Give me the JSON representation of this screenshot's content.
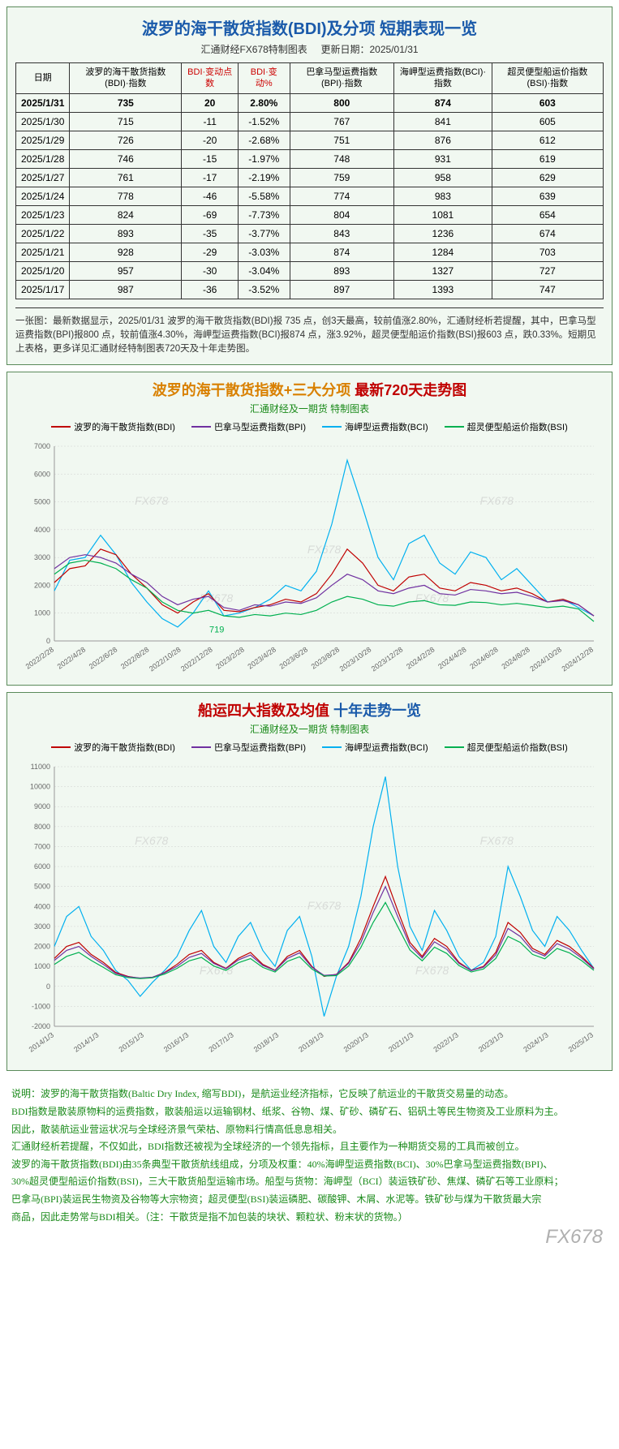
{
  "page": {
    "background_color": "#ffffff",
    "section_bg": "#f1f8f1",
    "border_color": "#5a8a5a"
  },
  "table": {
    "title": "波罗的海干散货指数(BDI)及分项 短期表现一览",
    "subtitle_left": "汇通财经FX678特制图表",
    "subtitle_right": "更新日期：2025/01/31",
    "headers": [
      {
        "text": "日期",
        "red": false
      },
      {
        "text": "波罗的海干散货指数(BDI)·指数",
        "red": false
      },
      {
        "text": "BDI·变动点数",
        "red": true
      },
      {
        "text": "BDI·变动%",
        "red": true
      },
      {
        "text": "巴拿马型运费指数(BPI)·指数",
        "red": false
      },
      {
        "text": "海岬型运费指数(BCI)·指数",
        "red": false
      },
      {
        "text": "超灵便型船运价指数(BSI)·指数",
        "red": false
      }
    ],
    "rows": [
      {
        "date": "2025/1/31",
        "bdi": "735",
        "chg": "20",
        "pct": "2.80%",
        "bpi": "800",
        "bci": "874",
        "bsi": "603",
        "bold": true
      },
      {
        "date": "2025/1/30",
        "bdi": "715",
        "chg": "-11",
        "pct": "-1.52%",
        "bpi": "767",
        "bci": "841",
        "bsi": "605",
        "bold": false
      },
      {
        "date": "2025/1/29",
        "bdi": "726",
        "chg": "-20",
        "pct": "-2.68%",
        "bpi": "751",
        "bci": "876",
        "bsi": "612",
        "bold": false
      },
      {
        "date": "2025/1/28",
        "bdi": "746",
        "chg": "-15",
        "pct": "-1.97%",
        "bpi": "748",
        "bci": "931",
        "bsi": "619",
        "bold": false
      },
      {
        "date": "2025/1/27",
        "bdi": "761",
        "chg": "-17",
        "pct": "-2.19%",
        "bpi": "759",
        "bci": "958",
        "bsi": "629",
        "bold": false
      },
      {
        "date": "2025/1/24",
        "bdi": "778",
        "chg": "-46",
        "pct": "-5.58%",
        "bpi": "774",
        "bci": "983",
        "bsi": "639",
        "bold": false
      },
      {
        "date": "2025/1/23",
        "bdi": "824",
        "chg": "-69",
        "pct": "-7.73%",
        "bpi": "804",
        "bci": "1081",
        "bsi": "654",
        "bold": false
      },
      {
        "date": "2025/1/22",
        "bdi": "893",
        "chg": "-35",
        "pct": "-3.77%",
        "bpi": "843",
        "bci": "1236",
        "bsi": "674",
        "bold": false
      },
      {
        "date": "2025/1/21",
        "bdi": "928",
        "chg": "-29",
        "pct": "-3.03%",
        "bpi": "874",
        "bci": "1284",
        "bsi": "703",
        "bold": false
      },
      {
        "date": "2025/1/20",
        "bdi": "957",
        "chg": "-30",
        "pct": "-3.04%",
        "bpi": "893",
        "bci": "1327",
        "bsi": "727",
        "bold": false
      },
      {
        "date": "2025/1/17",
        "bdi": "987",
        "chg": "-36",
        "pct": "-3.52%",
        "bpi": "897",
        "bci": "1393",
        "bsi": "747",
        "bold": false
      }
    ],
    "note": "一张图：最新数据显示，2025/01/31 波罗的海干散货指数(BDI)报 735 点，创3天最高，较前值涨2.80%，汇通财经析若提醒，其中，巴拿马型运费指数(BPI)报800 点，较前值涨4.30%，海岬型运费指数(BCI)报874 点，涨3.92%，超灵便型船运价指数(BSI)报603 点，跌0.33%。短期见上表格，更多详见汇通财经特制图表720天及十年走势图。"
  },
  "chart1": {
    "type": "line",
    "title_part1": "波罗的海干散货指数+三大分项",
    "title_part2": "最新720天走势图",
    "subtitle": "汇通财经及一期货 特制图表",
    "series": [
      {
        "name": "波罗的海干散货指数(BDI)",
        "color": "#c00000"
      },
      {
        "name": "巴拿马型运费指数(BPI)",
        "color": "#7030a0"
      },
      {
        "name": "海岬型运费指数(BCI)",
        "color": "#00b0f0"
      },
      {
        "name": "超灵便型船运价指数(BSI)",
        "color": "#00b050"
      }
    ],
    "ylim": [
      0,
      7000
    ],
    "ytick_step": 1000,
    "xlabels": [
      "2022/2/28",
      "2022/4/28",
      "2022/6/28",
      "2022/8/28",
      "2022/10/28",
      "2022/12/28",
      "2023/2/28",
      "2023/4/28",
      "2023/6/28",
      "2023/8/28",
      "2023/10/28",
      "2023/12/28",
      "2024/2/28",
      "2024/4/28",
      "2024/6/28",
      "2024/8/28",
      "2024/10/28",
      "2024/12/28"
    ],
    "annotation": {
      "text": "719",
      "x_idx": 9,
      "y": 719,
      "color": "#00b050"
    },
    "background_color": "#f1f8f1",
    "grid_color": "#d0d0d0",
    "watermark": "FX678",
    "data": {
      "bci_values": [
        1800,
        2900,
        3000,
        3800,
        3100,
        2100,
        1400,
        800,
        500,
        1000,
        1800,
        900,
        1000,
        1200,
        1500,
        2000,
        1800,
        2500,
        4200,
        6500,
        4800,
        3000,
        2200,
        3500,
        3800,
        2800,
        2400,
        3200,
        3000,
        2200,
        2600,
        2000,
        1400,
        1500,
        1200,
        900
      ],
      "bdi_values": [
        2100,
        2600,
        2700,
        3300,
        3100,
        2400,
        1900,
        1300,
        1000,
        1400,
        1700,
        1100,
        1050,
        1200,
        1300,
        1500,
        1400,
        1700,
        2400,
        3300,
        2800,
        2000,
        1800,
        2300,
        2400,
        1900,
        1800,
        2100,
        2000,
        1800,
        1900,
        1700,
        1400,
        1500,
        1300,
        900
      ],
      "bpi_values": [
        2600,
        3000,
        3100,
        3000,
        2800,
        2400,
        2100,
        1600,
        1300,
        1500,
        1600,
        1200,
        1100,
        1300,
        1250,
        1400,
        1350,
        1550,
        2000,
        2400,
        2200,
        1800,
        1700,
        1900,
        2000,
        1700,
        1650,
        1850,
        1800,
        1700,
        1750,
        1600,
        1400,
        1450,
        1300,
        900
      ],
      "bsi_values": [
        2400,
        2800,
        2900,
        2800,
        2600,
        2200,
        1900,
        1400,
        1100,
        1000,
        1100,
        900,
        850,
        950,
        900,
        1000,
        950,
        1100,
        1400,
        1600,
        1500,
        1300,
        1250,
        1400,
        1450,
        1300,
        1280,
        1400,
        1380,
        1300,
        1350,
        1280,
        1200,
        1250,
        1150,
        700
      ]
    }
  },
  "chart2": {
    "type": "line",
    "title_part1": "船运四大指数及均值",
    "title_part2": "十年走势一览",
    "subtitle": "汇通财经及一期货 特制图表",
    "series": [
      {
        "name": "波罗的海干散货指数(BDI)",
        "color": "#c00000"
      },
      {
        "name": "巴拿马型运费指数(BPI)",
        "color": "#7030a0"
      },
      {
        "name": "海岬型运费指数(BCI)",
        "color": "#00b0f0"
      },
      {
        "name": "超灵便型船运价指数(BSI)",
        "color": "#00b050"
      }
    ],
    "ylim": [
      -2000,
      11000
    ],
    "ytick_step": 1000,
    "xlabels": [
      "2014/1/3",
      "2014/1/3",
      "2015/1/3",
      "2016/1/3",
      "2017/1/3",
      "2018/1/3",
      "2019/1/3",
      "2020/1/3",
      "2021/1/3",
      "2022/1/3",
      "2023/1/3",
      "2024/1/3",
      "2025/1/3"
    ],
    "background_color": "#f1f8f1",
    "grid_color": "#d0d0d0",
    "watermark": "FX678",
    "data": {
      "bci_values": [
        2000,
        3500,
        4000,
        2500,
        1800,
        800,
        300,
        -500,
        200,
        800,
        1500,
        2800,
        3800,
        2000,
        1200,
        2500,
        3200,
        1800,
        1000,
        2800,
        3500,
        1500,
        -1500,
        500,
        2000,
        4500,
        8000,
        10500,
        6000,
        3000,
        1800,
        3800,
        2800,
        1500,
        800,
        1200,
        2500,
        6000,
        4500,
        2800,
        2000,
        3500,
        2800,
        1800,
        900
      ],
      "bdi_values": [
        1400,
        2000,
        2200,
        1600,
        1200,
        700,
        500,
        400,
        450,
        700,
        1100,
        1600,
        1800,
        1200,
        900,
        1400,
        1700,
        1100,
        800,
        1500,
        1800,
        1000,
        500,
        600,
        1200,
        2400,
        4000,
        5500,
        3800,
        2200,
        1500,
        2400,
        2000,
        1200,
        800,
        1000,
        1700,
        3200,
        2700,
        1900,
        1600,
        2300,
        2000,
        1500,
        900
      ],
      "bpi_values": [
        1300,
        1800,
        2000,
        1500,
        1100,
        650,
        480,
        420,
        460,
        680,
        1000,
        1450,
        1650,
        1150,
        880,
        1320,
        1570,
        1050,
        790,
        1400,
        1680,
        960,
        550,
        590,
        1150,
        2200,
        3700,
        5000,
        3500,
        2050,
        1420,
        2230,
        1860,
        1150,
        790,
        960,
        1580,
        2900,
        2500,
        1780,
        1520,
        2140,
        1870,
        1420,
        870
      ],
      "bsi_values": [
        1100,
        1500,
        1700,
        1300,
        950,
        580,
        440,
        390,
        430,
        620,
        900,
        1280,
        1450,
        1020,
        800,
        1180,
        1390,
        950,
        720,
        1250,
        1480,
        870,
        520,
        540,
        1020,
        1950,
        3200,
        4200,
        3000,
        1820,
        1280,
        1960,
        1650,
        1040,
        720,
        870,
        1400,
        2500,
        2200,
        1600,
        1380,
        1900,
        1680,
        1290,
        800
      ]
    }
  },
  "explanation": {
    "lines": [
      "说明：波罗的海干散货指数(Baltic Dry Index, 缩写BDI)，是航运业经济指标，它反映了航运业的干散货交易量的动态。",
      "BDI指数是散装原物料的运费指数，散装船运以运输钢材、纸浆、谷物、煤、矿砂、磷矿石、铝矾土等民生物资及工业原料为主。",
      "因此，散装航运业营运状况与全球经济景气荣枯、原物料行情高低息息相关。",
      "汇通财经析若提醒，不仅如此，BDI指数还被视为全球经济的一个领先指标，且主要作为一种期货交易的工具而被创立。",
      "波罗的海干散货指数(BDI)由35条典型干散货航线组成，分项及权重：40%海岬型运费指数(BCI)、30%巴拿马型运费指数(BPI)、",
      "30%超灵便型船运价指数(BSI)，三大干散货船型运输市场。船型与货物：海岬型（BCI）装运铁矿砂、焦煤、磷矿石等工业原料；",
      "巴拿马(BPI)装运民生物资及谷物等大宗物资；超灵便型(BSI)装运磷肥、碳酸钾、木屑、水泥等。铁矿砂与煤为干散货最大宗",
      "商品，因此走势常与BDI相关。（注：干散货是指不加包装的块状、颗粒状、粉末状的货物。）"
    ]
  },
  "logo": "FX678"
}
